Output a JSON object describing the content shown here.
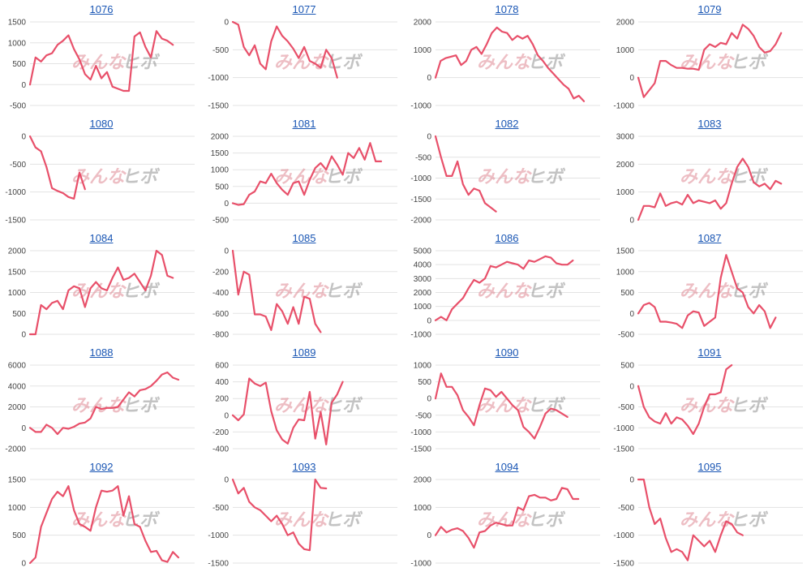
{
  "watermark": {
    "left": "みんな",
    "right": "ヒボ"
  },
  "line_color": "#e8506a",
  "title_color": "#1a56b4",
  "chart_data": [
    {
      "type": "line",
      "title": "1076",
      "ylim": [
        -500,
        1500
      ],
      "yticks": [
        -500,
        0,
        500,
        1000,
        1500
      ],
      "values": [
        0,
        650,
        550,
        700,
        750,
        950,
        1050,
        1180,
        850,
        600,
        250,
        120,
        450,
        150,
        300,
        -50,
        -100,
        -150,
        -150,
        1150,
        1250,
        900,
        650,
        1280,
        1100,
        1050,
        950
      ]
    },
    {
      "type": "line",
      "title": "1077",
      "ylim": [
        -1500,
        0
      ],
      "yticks": [
        -1500,
        -1000,
        -500,
        0
      ],
      "values": [
        0,
        -50,
        -450,
        -600,
        -420,
        -750,
        -850,
        -350,
        -80,
        -250,
        -350,
        -480,
        -650,
        -450,
        -700,
        -750,
        -820,
        -500,
        -650,
        -1000
      ]
    },
    {
      "type": "line",
      "title": "1078",
      "ylim": [
        -1000,
        2000
      ],
      "yticks": [
        -1000,
        0,
        1000,
        2000
      ],
      "values": [
        0,
        600,
        700,
        750,
        800,
        450,
        600,
        1000,
        1100,
        850,
        1200,
        1600,
        1800,
        1650,
        1600,
        1350,
        1500,
        1400,
        1500,
        1200,
        800,
        600,
        350,
        150,
        -50,
        -250,
        -400,
        -750,
        -650,
        -850
      ]
    },
    {
      "type": "line",
      "title": "1079",
      "ylim": [
        -1000,
        2000
      ],
      "yticks": [
        -1000,
        0,
        1000,
        2000
      ],
      "values": [
        0,
        -700,
        -450,
        -200,
        600,
        600,
        450,
        350,
        350,
        320,
        320,
        280,
        1000,
        1200,
        1100,
        1250,
        1200,
        1600,
        1400,
        1900,
        1750,
        1500,
        1100,
        900,
        950,
        1200,
        1600
      ]
    },
    {
      "type": "line",
      "title": "1080",
      "ylim": [
        -1500,
        0
      ],
      "yticks": [
        -1500,
        -1000,
        -500,
        0
      ],
      "values": [
        0,
        -200,
        -270,
        -550,
        -930,
        -980,
        -1020,
        -1090,
        -1120,
        -650,
        -950
      ]
    },
    {
      "type": "line",
      "title": "1081",
      "ylim": [
        -500,
        2000
      ],
      "yticks": [
        -500,
        0,
        500,
        1000,
        1500,
        2000
      ],
      "values": [
        0,
        -50,
        -30,
        250,
        350,
        650,
        600,
        880,
        600,
        400,
        250,
        600,
        650,
        250,
        700,
        1050,
        1200,
        1000,
        1400,
        1150,
        850,
        1500,
        1350,
        1650,
        1300,
        1800,
        1250,
        1250
      ]
    },
    {
      "type": "line",
      "title": "1082",
      "ylim": [
        -2000,
        0
      ],
      "yticks": [
        -2000,
        -1500,
        -1000,
        -500,
        0
      ],
      "values": [
        0,
        -500,
        -950,
        -950,
        -600,
        -1150,
        -1400,
        -1250,
        -1300,
        -1600,
        -1700,
        -1800
      ]
    },
    {
      "type": "line",
      "title": "1083",
      "ylim": [
        0,
        3000
      ],
      "yticks": [
        0,
        1000,
        2000,
        3000
      ],
      "values": [
        0,
        500,
        500,
        450,
        950,
        500,
        600,
        650,
        550,
        900,
        600,
        700,
        650,
        600,
        700,
        400,
        600,
        1300,
        1900,
        2200,
        1900,
        1350,
        1200,
        1300,
        1100,
        1400,
        1300
      ]
    },
    {
      "type": "line",
      "title": "1084",
      "ylim": [
        0,
        2000
      ],
      "yticks": [
        0,
        500,
        1000,
        1500,
        2000
      ],
      "values": [
        0,
        0,
        700,
        600,
        750,
        800,
        600,
        1050,
        1150,
        1100,
        650,
        1100,
        1250,
        1100,
        1050,
        1350,
        1600,
        1300,
        1350,
        1450,
        1250,
        1050,
        1400,
        2000,
        1900,
        1400,
        1350
      ]
    },
    {
      "type": "line",
      "title": "1085",
      "ylim": [
        -800,
        0
      ],
      "yticks": [
        -800,
        -600,
        -400,
        -200,
        0
      ],
      "values": [
        0,
        -420,
        -200,
        -230,
        -610,
        -610,
        -630,
        -760,
        -510,
        -580,
        -700,
        -540,
        -700,
        -440,
        -460,
        -700,
        -780
      ]
    },
    {
      "type": "line",
      "title": "1086",
      "ylim": [
        -1000,
        5000
      ],
      "yticks": [
        -1000,
        0,
        1000,
        2000,
        3000,
        4000,
        5000
      ],
      "values": [
        0,
        250,
        0,
        800,
        1200,
        1600,
        2300,
        2900,
        2700,
        3000,
        3900,
        3800,
        4000,
        4200,
        4100,
        4000,
        3700,
        4300,
        4200,
        4400,
        4600,
        4500,
        4100,
        4000,
        4000,
        4300
      ]
    },
    {
      "type": "line",
      "title": "1087",
      "ylim": [
        -500,
        1500
      ],
      "yticks": [
        -500,
        0,
        500,
        1000,
        1500
      ],
      "values": [
        0,
        200,
        250,
        150,
        -200,
        -200,
        -220,
        -250,
        -350,
        -50,
        50,
        20,
        -300,
        -200,
        -100,
        850,
        1400,
        1000,
        600,
        500,
        150,
        0,
        200,
        50,
        -350,
        -100
      ]
    },
    {
      "type": "line",
      "title": "1088",
      "ylim": [
        -2000,
        6000
      ],
      "yticks": [
        -2000,
        0,
        2000,
        4000,
        6000
      ],
      "values": [
        0,
        -400,
        -400,
        300,
        0,
        -600,
        0,
        -100,
        100,
        400,
        500,
        900,
        2000,
        1800,
        1900,
        1900,
        2000,
        2700,
        3400,
        3000,
        3600,
        3700,
        4000,
        4500,
        5100,
        5300,
        4800,
        4600
      ]
    },
    {
      "type": "line",
      "title": "1089",
      "ylim": [
        -400,
        600
      ],
      "yticks": [
        -400,
        -200,
        0,
        200,
        400,
        600
      ],
      "values": [
        0,
        -60,
        10,
        440,
        380,
        350,
        390,
        50,
        -180,
        -290,
        -340,
        -150,
        -50,
        -60,
        280,
        -280,
        40,
        -350,
        150,
        250,
        400
      ]
    },
    {
      "type": "line",
      "title": "1090",
      "ylim": [
        -1500,
        1000
      ],
      "yticks": [
        -1500,
        -1000,
        -500,
        0,
        500,
        1000
      ],
      "values": [
        0,
        750,
        350,
        350,
        100,
        -350,
        -550,
        -800,
        -200,
        300,
        250,
        50,
        200,
        0,
        -200,
        -350,
        -850,
        -1000,
        -1200,
        -850,
        -450,
        -300,
        -350,
        -450,
        -550
      ]
    },
    {
      "type": "line",
      "title": "1091",
      "ylim": [
        -1500,
        500
      ],
      "yticks": [
        -1500,
        -1000,
        -500,
        0,
        500
      ],
      "values": [
        0,
        -500,
        -750,
        -850,
        -900,
        -650,
        -900,
        -750,
        -800,
        -950,
        -1150,
        -900,
        -500,
        -200,
        -200,
        -150,
        400,
        500
      ]
    },
    {
      "type": "line",
      "title": "1092",
      "ylim": [
        0,
        1500
      ],
      "yticks": [
        0,
        500,
        1000,
        1500
      ],
      "values": [
        0,
        100,
        650,
        900,
        1150,
        1280,
        1200,
        1380,
        950,
        700,
        650,
        580,
        1000,
        1300,
        1280,
        1300,
        1380,
        850,
        1200,
        700,
        650,
        400,
        200,
        220,
        50,
        20,
        200,
        100
      ]
    },
    {
      "type": "line",
      "title": "1093",
      "ylim": [
        -1500,
        0
      ],
      "yticks": [
        -1500,
        -1000,
        -500,
        0
      ],
      "values": [
        0,
        -250,
        -150,
        -400,
        -500,
        -550,
        -650,
        -750,
        -650,
        -800,
        -1000,
        -950,
        -1150,
        -1250,
        -1270,
        0,
        -150,
        -160
      ]
    },
    {
      "type": "line",
      "title": "1094",
      "ylim": [
        -1000,
        2000
      ],
      "yticks": [
        -1000,
        0,
        1000,
        2000
      ],
      "values": [
        0,
        300,
        100,
        200,
        250,
        150,
        -100,
        -450,
        100,
        150,
        350,
        450,
        400,
        350,
        350,
        1000,
        900,
        1400,
        1450,
        1350,
        1350,
        1250,
        1300,
        1700,
        1650,
        1300,
        1300
      ]
    },
    {
      "type": "line",
      "title": "1095",
      "ylim": [
        -1500,
        0
      ],
      "yticks": [
        -1500,
        -1000,
        -500,
        0
      ],
      "values": [
        0,
        0,
        -500,
        -800,
        -700,
        -1050,
        -1300,
        -1250,
        -1300,
        -1450,
        -1000,
        -1100,
        -1200,
        -1100,
        -1300,
        -1000,
        -750,
        -800,
        -950,
        -1000
      ]
    }
  ]
}
